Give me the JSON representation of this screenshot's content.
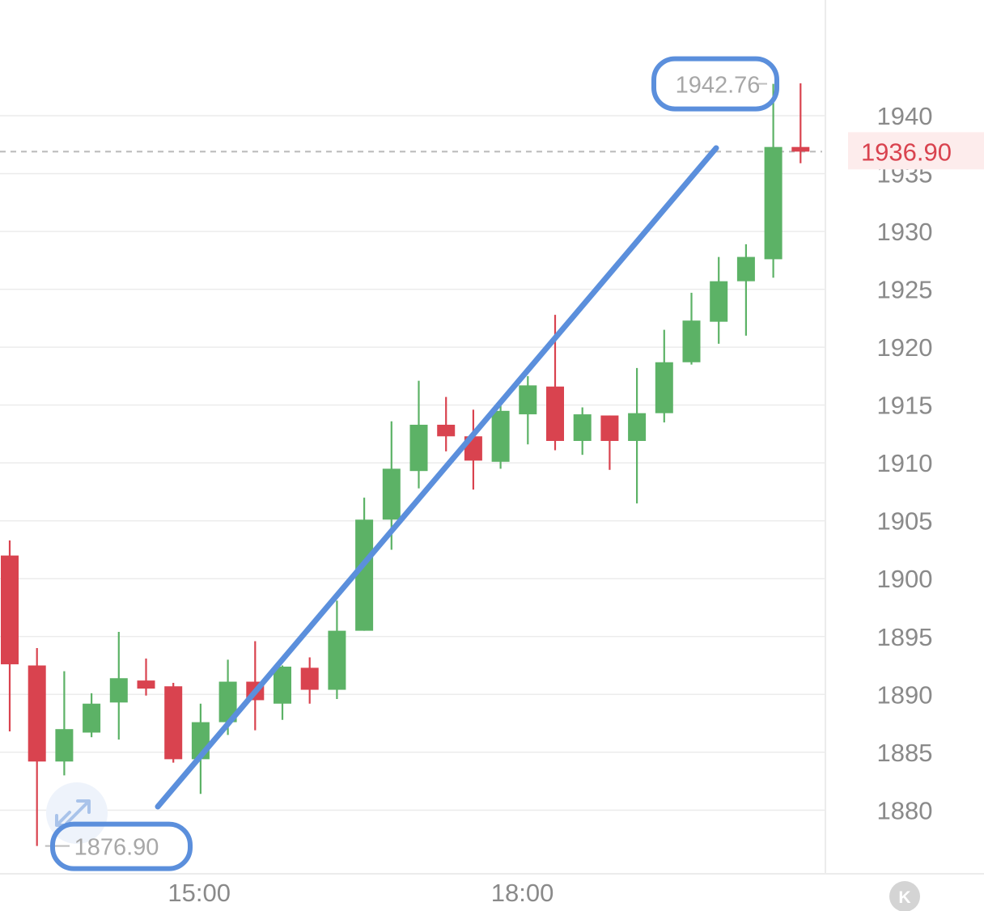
{
  "chart_data": {
    "type": "candlestick",
    "title": "",
    "xlabel": "",
    "ylabel": "",
    "ylim": [
      1874.5,
      1950
    ],
    "y_ticks": [
      "1880",
      "1885",
      "1890",
      "1895",
      "1900",
      "1905",
      "1910",
      "1915",
      "1920",
      "1925",
      "1930",
      "1935",
      "1940"
    ],
    "x_ticks": [
      {
        "label": "15:00",
        "index": 6.95
      },
      {
        "label": "18:00",
        "index": 18.8
      }
    ],
    "current_price": "1936.90",
    "high_label": "1942.76",
    "low_label": "1876.90",
    "high_index": 27.6,
    "low_index": 1.3,
    "grid": true,
    "candles": [
      {
        "o": 1902.0,
        "h": 1903.3,
        "l": 1886.8,
        "c": 1892.6
      },
      {
        "o": 1892.5,
        "h": 1894.0,
        "l": 1876.9,
        "c": 1884.2
      },
      {
        "o": 1884.2,
        "h": 1892.0,
        "l": 1883.0,
        "c": 1887.0
      },
      {
        "o": 1886.7,
        "h": 1890.1,
        "l": 1886.3,
        "c": 1889.2
      },
      {
        "o": 1889.3,
        "h": 1895.4,
        "l": 1886.1,
        "c": 1891.4
      },
      {
        "o": 1891.2,
        "h": 1893.1,
        "l": 1889.9,
        "c": 1890.5
      },
      {
        "o": 1890.7,
        "h": 1891.0,
        "l": 1884.1,
        "c": 1884.4
      },
      {
        "o": 1884.4,
        "h": 1889.2,
        "l": 1881.4,
        "c": 1887.6
      },
      {
        "o": 1887.6,
        "h": 1893.0,
        "l": 1886.5,
        "c": 1891.1
      },
      {
        "o": 1891.1,
        "h": 1894.6,
        "l": 1886.9,
        "c": 1889.5
      },
      {
        "o": 1889.2,
        "h": 1892.5,
        "l": 1887.8,
        "c": 1892.4
      },
      {
        "o": 1892.3,
        "h": 1893.2,
        "l": 1889.2,
        "c": 1890.4
      },
      {
        "o": 1890.4,
        "h": 1898.1,
        "l": 1889.6,
        "c": 1895.5
      },
      {
        "o": 1895.5,
        "h": 1907.0,
        "l": 1895.5,
        "c": 1905.1
      },
      {
        "o": 1905.1,
        "h": 1913.6,
        "l": 1902.5,
        "c": 1909.5
      },
      {
        "o": 1909.3,
        "h": 1917.1,
        "l": 1907.8,
        "c": 1913.3
      },
      {
        "o": 1913.3,
        "h": 1915.7,
        "l": 1911.0,
        "c": 1912.3
      },
      {
        "o": 1912.3,
        "h": 1914.6,
        "l": 1907.7,
        "c": 1910.2
      },
      {
        "o": 1910.1,
        "h": 1915.4,
        "l": 1909.5,
        "c": 1914.5
      },
      {
        "o": 1914.2,
        "h": 1917.5,
        "l": 1911.6,
        "c": 1916.7
      },
      {
        "o": 1916.6,
        "h": 1922.8,
        "l": 1911.1,
        "c": 1911.9
      },
      {
        "o": 1911.9,
        "h": 1914.8,
        "l": 1910.7,
        "c": 1914.2
      },
      {
        "o": 1914.1,
        "h": 1914.1,
        "l": 1909.4,
        "c": 1911.9
      },
      {
        "o": 1911.9,
        "h": 1918.2,
        "l": 1906.5,
        "c": 1914.3
      },
      {
        "o": 1914.3,
        "h": 1921.5,
        "l": 1913.5,
        "c": 1918.7
      },
      {
        "o": 1918.7,
        "h": 1924.7,
        "l": 1918.5,
        "c": 1922.3
      },
      {
        "o": 1922.2,
        "h": 1927.8,
        "l": 1920.3,
        "c": 1925.7
      },
      {
        "o": 1925.7,
        "h": 1928.9,
        "l": 1921.0,
        "c": 1927.8
      },
      {
        "o": 1927.6,
        "h": 1942.76,
        "l": 1926.0,
        "c": 1937.3
      },
      {
        "o": 1937.3,
        "h": 1942.8,
        "l": 1935.9,
        "c": 1936.9
      }
    ],
    "colors": {
      "up": "#5cb266",
      "down": "#d9434f",
      "grid": "#ececec",
      "annotation": "#5b8fdc",
      "price_line": "#b9b9b9"
    }
  },
  "widgets": {
    "expand_icon": "expand-arrows-icon",
    "k_icon": "kline-badge-icon",
    "k_glyph": "K"
  }
}
